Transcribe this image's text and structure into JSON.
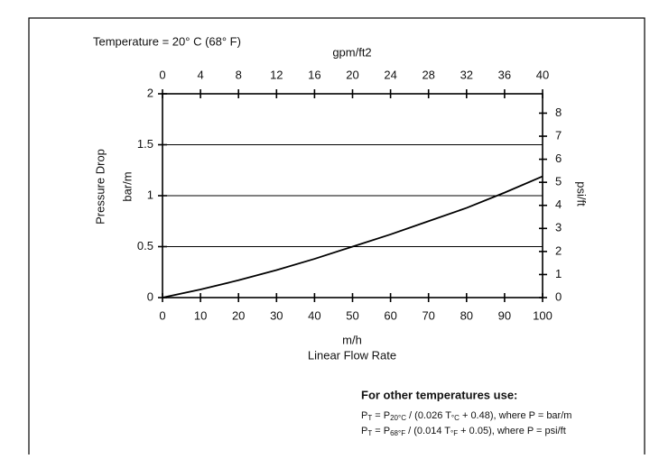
{
  "chart_data": {
    "type": "line",
    "note_top": "Temperature = 20° C (68° F)",
    "xlabel_top": "gpm/ft2",
    "ylabel": [
      "Pressure Drop",
      "bar/m"
    ],
    "y2label": "psi/ft",
    "xlabel": [
      "m/h",
      "Linear Flow Rate"
    ],
    "x": [
      0,
      10,
      20,
      30,
      40,
      50,
      60,
      70,
      80,
      90,
      100
    ],
    "series": [
      {
        "color": "#000000",
        "values": [
          0,
          0.08,
          0.17,
          0.27,
          0.38,
          0.5,
          0.62,
          0.75,
          0.88,
          1.03,
          1.19
        ]
      }
    ],
    "xlim": [
      0,
      100
    ],
    "xticks": [
      0,
      10,
      20,
      30,
      40,
      50,
      60,
      70,
      80,
      90,
      100
    ],
    "x2lim": [
      0,
      40
    ],
    "x2ticks": [
      0,
      4,
      8,
      12,
      16,
      20,
      24,
      28,
      32,
      36,
      40
    ],
    "ylim": [
      0,
      2
    ],
    "yticks": [
      0,
      0.5,
      1,
      1.5,
      2
    ],
    "y2lim": [
      0,
      8.84
    ],
    "y2ticks": [
      0,
      1,
      2,
      3,
      4,
      5,
      6,
      7,
      8
    ],
    "grid": true,
    "formula_heading": "For other temperatures use:",
    "formulas": [
      [
        {
          "text": "P",
          "sub": false
        },
        {
          "text": "T",
          "sub": true
        },
        {
          "text": " = P",
          "sub": false
        },
        {
          "text": "20°C",
          "sub": true
        },
        {
          "text": " / (0.026 T",
          "sub": false
        },
        {
          "text": "°C",
          "sub": true
        },
        {
          "text": " + 0.48), where P = bar/m",
          "sub": false
        }
      ],
      [
        {
          "text": "P",
          "sub": false
        },
        {
          "text": "T",
          "sub": true
        },
        {
          "text": " = P",
          "sub": false
        },
        {
          "text": "68°F",
          "sub": true
        },
        {
          "text": " / (0.014 T",
          "sub": false
        },
        {
          "text": "°F",
          "sub": true
        },
        {
          "text": " + 0.05), where P = psi/ft",
          "sub": false
        }
      ]
    ]
  }
}
